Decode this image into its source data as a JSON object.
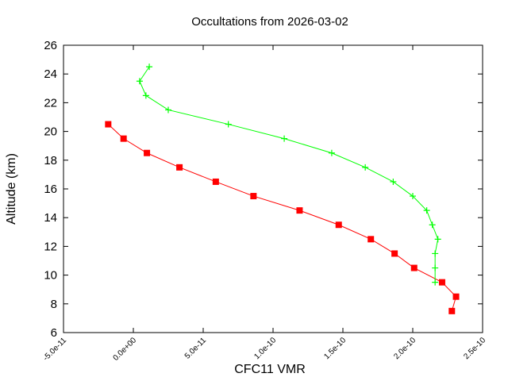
{
  "chart_data": {
    "type": "line",
    "title": "Occultations from 2026-03-02",
    "xlabel": "CFC11 VMR",
    "ylabel": "Altitude (km)",
    "xlim": [
      -5e-11,
      2.5e-10
    ],
    "ylim": [
      6,
      26
    ],
    "xticks": [
      -5e-11,
      0,
      5e-11,
      1e-10,
      1.5e-10,
      2e-10,
      2.5e-10
    ],
    "xtick_labels": [
      "-5.0e-11",
      "0.0e+00",
      "5.0e-11",
      "1.0e-10",
      "1.5e-10",
      "2.0e-10",
      "2.5e-10"
    ],
    "yticks": [
      6,
      8,
      10,
      12,
      14,
      16,
      18,
      20,
      22,
      24,
      26
    ],
    "ytick_labels": [
      "6",
      "8",
      "10",
      "12",
      "14",
      "16",
      "18",
      "20",
      "22",
      "24",
      "26"
    ],
    "grid": false,
    "series": [
      {
        "color": "#ff0000",
        "marker": "square",
        "x": [
          -1.8e-11,
          -7e-12,
          9.7e-12,
          3.3e-11,
          5.9e-11,
          8.6e-11,
          1.19e-10,
          1.47e-10,
          1.7e-10,
          1.87e-10,
          2.01e-10,
          2.21e-10,
          2.31e-10,
          2.28e-10
        ],
        "y": [
          20.5,
          19.5,
          18.5,
          17.5,
          16.5,
          15.5,
          14.5,
          13.5,
          12.5,
          11.5,
          10.5,
          9.5,
          8.5,
          7.5
        ]
      },
      {
        "color": "#00ff00",
        "marker": "plus",
        "x": [
          1.14e-11,
          4.5e-12,
          9e-12,
          2.5e-11,
          6.8e-11,
          1.08e-10,
          1.42e-10,
          1.66e-10,
          1.86e-10,
          2e-10,
          2.1e-10,
          2.14e-10,
          2.18e-10,
          2.16e-10,
          2.16e-10,
          2.16e-10
        ],
        "y": [
          24.5,
          23.5,
          22.5,
          21.5,
          20.5,
          19.5,
          18.5,
          17.5,
          16.5,
          15.5,
          14.5,
          13.5,
          12.5,
          11.5,
          10.5,
          9.5
        ]
      }
    ]
  }
}
